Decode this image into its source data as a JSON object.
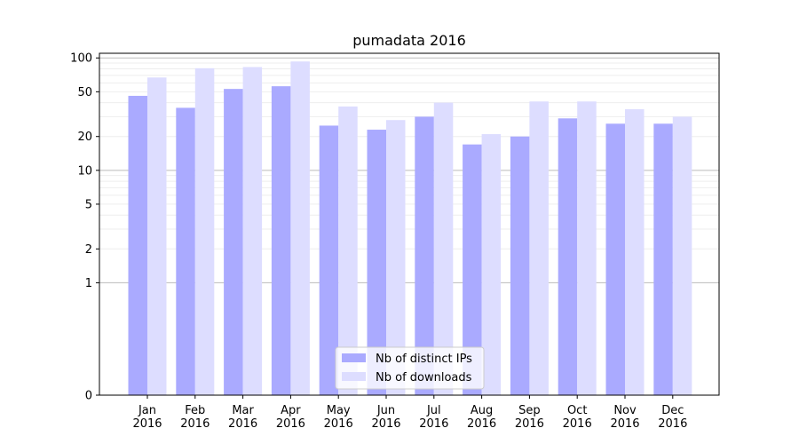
{
  "chart_data": {
    "type": "bar",
    "title": "pumadata 2016",
    "xlabel": "",
    "ylabel": "",
    "yscale": "symlog",
    "ylim": [
      0,
      110
    ],
    "yticks": [
      0,
      1,
      2,
      5,
      10,
      20,
      50,
      100
    ],
    "ytick_labels": [
      "0",
      "1",
      "2",
      "5",
      "10",
      "20",
      "50",
      "100"
    ],
    "categories": [
      "Jan\n2016",
      "Feb\n2016",
      "Mar\n2016",
      "Apr\n2016",
      "May\n2016",
      "Jun\n2016",
      "Jul\n2016",
      "Aug\n2016",
      "Sep\n2016",
      "Oct\n2016",
      "Nov\n2016",
      "Dec\n2016"
    ],
    "category_lines": [
      [
        "Jan",
        "2016"
      ],
      [
        "Feb",
        "2016"
      ],
      [
        "Mar",
        "2016"
      ],
      [
        "Apr",
        "2016"
      ],
      [
        "May",
        "2016"
      ],
      [
        "Jun",
        "2016"
      ],
      [
        "Jul",
        "2016"
      ],
      [
        "Aug",
        "2016"
      ],
      [
        "Sep",
        "2016"
      ],
      [
        "Oct",
        "2016"
      ],
      [
        "Nov",
        "2016"
      ],
      [
        "Dec",
        "2016"
      ]
    ],
    "series": [
      {
        "name": "Nb of distinct IPs",
        "color": "#aaaaff",
        "values": [
          46,
          36,
          53,
          56,
          25,
          23,
          30,
          17,
          20,
          29,
          26,
          26
        ]
      },
      {
        "name": "Nb of downloads",
        "color": "#ddddff",
        "values": [
          67,
          81,
          83,
          93,
          37,
          28,
          40,
          21,
          41,
          41,
          35,
          30
        ]
      }
    ],
    "grid": true,
    "legend_position": "bottom-center"
  }
}
